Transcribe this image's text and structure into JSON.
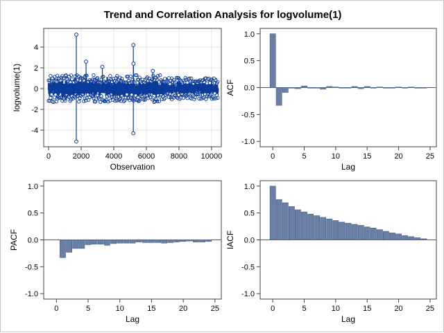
{
  "title": "Trend and Correlation Analysis for logvolume(1)",
  "colors": {
    "series": "#0a3a9a",
    "bar_fill": "#6a7fa6",
    "bar_edge": "#4a5f86",
    "axis": "#404040",
    "grid": "#e6e6e6",
    "ref": "#555555"
  },
  "chart_data": [
    {
      "name": "series",
      "type": "scatter",
      "title": "",
      "xlabel": "Observation",
      "ylabel": "logvolume(1)",
      "xlim": [
        -300,
        10600
      ],
      "ylim": [
        -5.6,
        5.8
      ],
      "xticks": [
        0,
        2000,
        4000,
        6000,
        8000,
        10000
      ],
      "yticks": [
        -4,
        -2,
        0,
        2,
        4
      ],
      "grid": true,
      "n_obs": 10400,
      "outliers": [
        {
          "x": 1700,
          "y": 5.2
        },
        {
          "x": 1700,
          "y": -5.1
        },
        {
          "x": 5200,
          "y": 4.2
        },
        {
          "x": 5200,
          "y": -4.3
        },
        {
          "x": 5210,
          "y": 2.4
        },
        {
          "x": 2300,
          "y": 2.6
        },
        {
          "x": 3300,
          "y": 2.1
        },
        {
          "x": 6400,
          "y": 1.7
        }
      ]
    },
    {
      "name": "acf",
      "type": "bar",
      "xlabel": "Lag",
      "ylabel": "ACF",
      "xlim": [
        -2,
        26
      ],
      "ylim": [
        -1.1,
        1.1
      ],
      "xticks": [
        0,
        5,
        10,
        15,
        20,
        25
      ],
      "yticks": [
        -1.0,
        -0.5,
        0.0,
        0.5,
        1.0
      ],
      "x": [
        0,
        1,
        2,
        3,
        4,
        5,
        6,
        7,
        8,
        9,
        10,
        11,
        12,
        13,
        14,
        15,
        16,
        17,
        18,
        19,
        20,
        21,
        22,
        23,
        24
      ],
      "values": [
        1.0,
        -0.33,
        -0.09,
        -0.01,
        -0.02,
        0.03,
        0.0,
        -0.01,
        -0.03,
        0.02,
        0.01,
        0.0,
        -0.01,
        0.02,
        -0.02,
        0.02,
        -0.01,
        0.01,
        -0.01,
        0.0,
        0.01,
        -0.01,
        0.01,
        -0.01,
        0.0
      ]
    },
    {
      "name": "pacf",
      "type": "bar",
      "xlabel": "Lag",
      "ylabel": "PACF",
      "xlim": [
        -2,
        26
      ],
      "ylim": [
        -1.1,
        1.1
      ],
      "xticks": [
        0,
        5,
        10,
        15,
        20,
        25
      ],
      "yticks": [
        -1.0,
        -0.5,
        0.0,
        0.5,
        1.0
      ],
      "x": [
        1,
        2,
        3,
        4,
        5,
        6,
        7,
        8,
        9,
        10,
        11,
        12,
        13,
        14,
        15,
        16,
        17,
        18,
        19,
        20,
        21,
        22,
        23,
        24
      ],
      "values": [
        -0.33,
        -0.23,
        -0.16,
        -0.16,
        -0.09,
        -0.08,
        -0.08,
        -0.1,
        -0.07,
        -0.06,
        -0.06,
        -0.06,
        -0.04,
        -0.05,
        -0.05,
        -0.05,
        -0.06,
        -0.05,
        -0.04,
        -0.03,
        -0.02,
        -0.04,
        -0.04,
        -0.03
      ]
    },
    {
      "name": "iacf",
      "type": "bar",
      "xlabel": "Lag",
      "ylabel": "IACF",
      "xlim": [
        -2,
        26
      ],
      "ylim": [
        -1.1,
        1.1
      ],
      "xticks": [
        0,
        5,
        10,
        15,
        20,
        25
      ],
      "yticks": [
        -1.0,
        -0.5,
        0.0,
        0.5,
        1.0
      ],
      "x": [
        0,
        1,
        2,
        3,
        4,
        5,
        6,
        7,
        8,
        9,
        10,
        11,
        12,
        13,
        14,
        15,
        16,
        17,
        18,
        19,
        20,
        21,
        22,
        23,
        24
      ],
      "values": [
        1.0,
        0.75,
        0.69,
        0.62,
        0.56,
        0.52,
        0.48,
        0.45,
        0.42,
        0.39,
        0.36,
        0.33,
        0.31,
        0.29,
        0.27,
        0.24,
        0.22,
        0.19,
        0.16,
        0.13,
        0.11,
        0.08,
        0.06,
        0.04,
        0.02
      ]
    }
  ]
}
